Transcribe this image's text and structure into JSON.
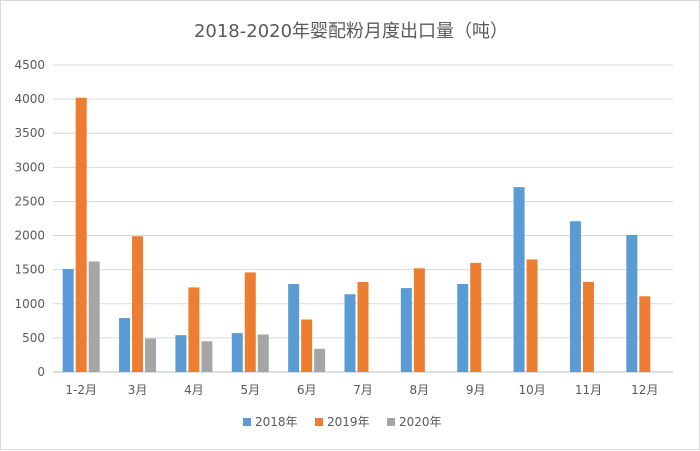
{
  "chart_data": {
    "type": "bar",
    "title": "2018-2020年婴配粉月度出口量（吨）",
    "xlabel": "",
    "ylabel": "",
    "ylim": [
      0,
      4500
    ],
    "yticks": [
      0,
      500,
      1000,
      1500,
      2000,
      2500,
      3000,
      3500,
      4000,
      4500
    ],
    "grid": true,
    "legend_position": "bottom",
    "categories": [
      "1-2月",
      "3月",
      "4月",
      "5月",
      "6月",
      "7月",
      "8月",
      "9月",
      "10月",
      "11月",
      "12月"
    ],
    "series": [
      {
        "name": "2018年",
        "color": "#5b9bd5",
        "values": [
          1510,
          790,
          540,
          570,
          1290,
          1140,
          1230,
          1290,
          2710,
          2210,
          2010
        ]
      },
      {
        "name": "2019年",
        "color": "#ed7d31",
        "values": [
          4020,
          1990,
          1240,
          1460,
          770,
          1320,
          1520,
          1600,
          1650,
          1320,
          1110
        ]
      },
      {
        "name": "2020年",
        "color": "#a5a5a5",
        "values": [
          1620,
          490,
          450,
          550,
          340,
          null,
          null,
          null,
          null,
          null,
          null
        ]
      }
    ]
  }
}
